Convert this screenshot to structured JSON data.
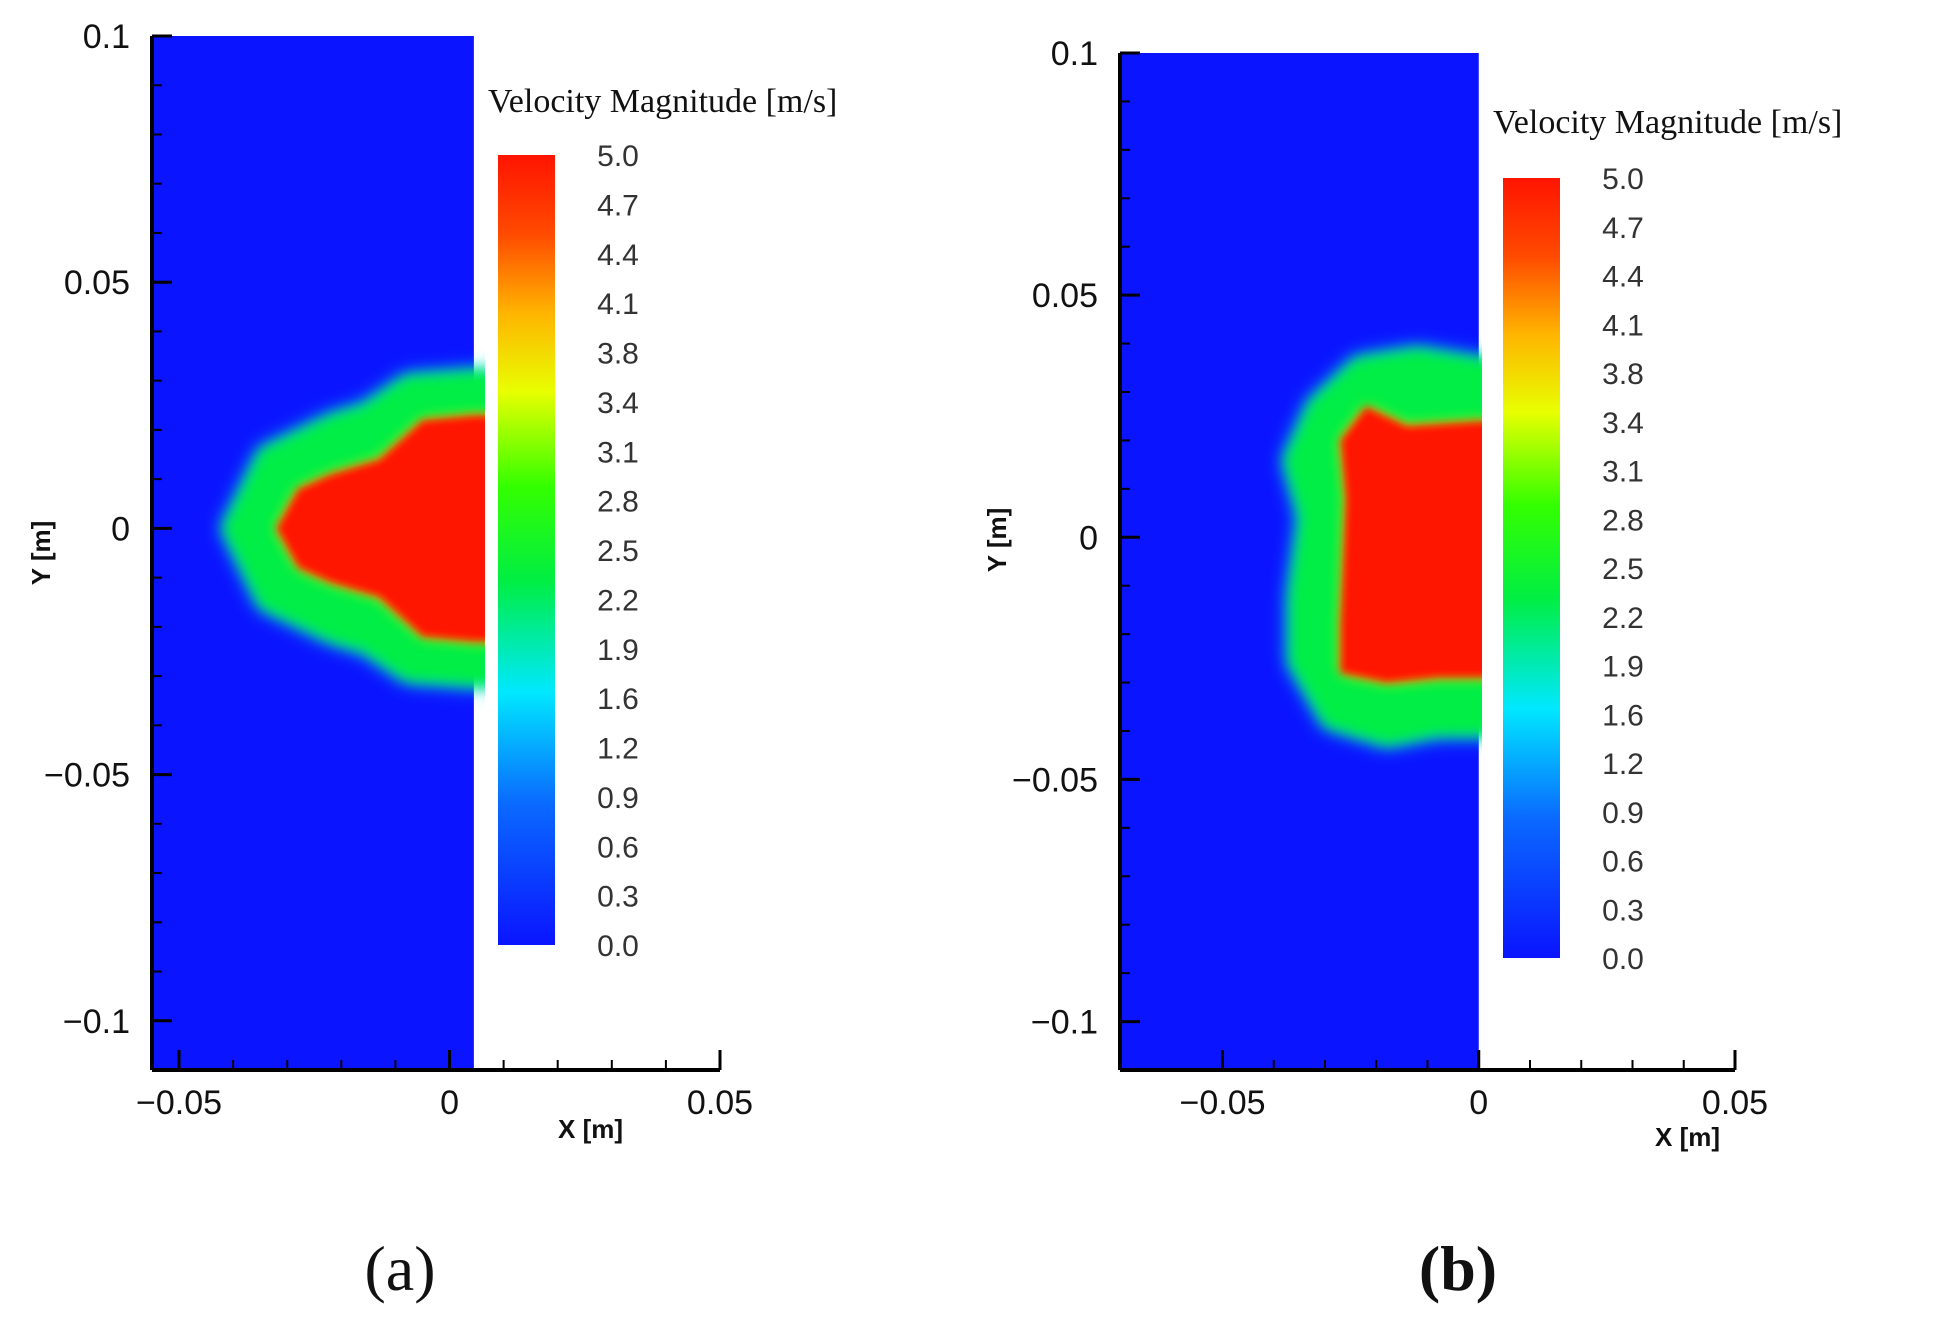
{
  "chart_data": [
    {
      "type": "heatmap",
      "panel": "(a)",
      "xlabel": "X [m]",
      "ylabel": "Y [m]",
      "xlim": [
        -0.055,
        0.05
      ],
      "ylim": [
        -0.11,
        0.1
      ],
      "domain_x": [
        -0.055,
        0.0045
      ],
      "x_ticks": [
        -0.05,
        0,
        0.05
      ],
      "x_tick_labels": [
        "−0.05",
        "0",
        "0.05"
      ],
      "y_ticks": [
        0.1,
        0.05,
        0,
        -0.05,
        -0.1
      ],
      "y_tick_labels": [
        "0.1",
        "0.05",
        "0",
        "−0.05",
        "−0.1"
      ],
      "colorbar_title": "Velocity Magnitude [m/s]",
      "colorbar_levels": [
        "5.0",
        "4.7",
        "4.4",
        "4.1",
        "3.8",
        "3.4",
        "3.1",
        "2.8",
        "2.5",
        "2.2",
        "1.9",
        "1.6",
        "1.2",
        "0.9",
        "0.6",
        "0.3",
        "0.0"
      ],
      "colorbar_range": [
        0.0,
        5.0
      ],
      "background_value": 0.0,
      "core_value": 5.0,
      "jet_shape": "three-lobed",
      "jet_outer_boundary_m": [
        [
          0.0045,
          0.032
        ],
        [
          -0.008,
          0.031
        ],
        [
          -0.016,
          0.025
        ],
        [
          -0.022,
          0.023
        ],
        [
          -0.035,
          0.016
        ],
        [
          -0.042,
          0.0
        ],
        [
          -0.035,
          -0.016
        ],
        [
          -0.022,
          -0.023
        ],
        [
          -0.016,
          -0.025
        ],
        [
          -0.008,
          -0.031
        ],
        [
          0.0045,
          -0.032
        ]
      ],
      "jet_core_boundary_m": [
        [
          0.0045,
          0.023
        ],
        [
          -0.005,
          0.022
        ],
        [
          -0.013,
          0.014
        ],
        [
          -0.022,
          0.011
        ],
        [
          -0.028,
          0.008
        ],
        [
          -0.032,
          0.0
        ],
        [
          -0.028,
          -0.008
        ],
        [
          -0.022,
          -0.011
        ],
        [
          -0.013,
          -0.014
        ],
        [
          -0.005,
          -0.022
        ],
        [
          0.0045,
          -0.023
        ]
      ]
    },
    {
      "type": "heatmap",
      "panel": "(b)",
      "xlabel": "X [m]",
      "ylabel": "Y [m]",
      "xlim": [
        -0.07,
        0.05
      ],
      "ylim": [
        -0.11,
        0.1
      ],
      "domain_x": [
        -0.07,
        0.0
      ],
      "x_ticks": [
        -0.05,
        0,
        0.05
      ],
      "x_tick_labels": [
        "−0.05",
        "0",
        "0.05"
      ],
      "y_ticks": [
        0.1,
        0.05,
        0,
        -0.05,
        -0.1
      ],
      "y_tick_labels": [
        "0.1",
        "0.05",
        "0",
        "−0.05",
        "−0.1"
      ],
      "colorbar_title": "Velocity Magnitude [m/s]",
      "colorbar_levels": [
        "5.0",
        "4.7",
        "4.4",
        "4.1",
        "3.8",
        "3.4",
        "3.1",
        "2.8",
        "2.5",
        "2.2",
        "1.9",
        "1.6",
        "1.2",
        "0.9",
        "0.6",
        "0.3",
        "0.0"
      ],
      "colorbar_range": [
        0.0,
        5.0
      ],
      "background_value": 0.0,
      "core_value": 5.0,
      "jet_shape": "four-lobed",
      "jet_outer_boundary_m": [
        [
          0.0,
          0.037
        ],
        [
          -0.012,
          0.039
        ],
        [
          -0.024,
          0.037
        ],
        [
          -0.033,
          0.028
        ],
        [
          -0.038,
          0.016
        ],
        [
          -0.035,
          0.004
        ],
        [
          -0.037,
          -0.012
        ],
        [
          -0.037,
          -0.026
        ],
        [
          -0.03,
          -0.039
        ],
        [
          -0.018,
          -0.043
        ],
        [
          -0.008,
          -0.041
        ],
        [
          0.0,
          -0.041
        ]
      ],
      "jet_core_boundary_m": [
        [
          0.0,
          0.024
        ],
        [
          -0.014,
          0.023
        ],
        [
          -0.022,
          0.027
        ],
        [
          -0.027,
          0.02
        ],
        [
          -0.026,
          0.008
        ],
        [
          -0.027,
          -0.018
        ],
        [
          -0.027,
          -0.028
        ],
        [
          -0.018,
          -0.03
        ],
        [
          -0.008,
          -0.029
        ],
        [
          0.0,
          -0.029
        ]
      ]
    }
  ]
}
